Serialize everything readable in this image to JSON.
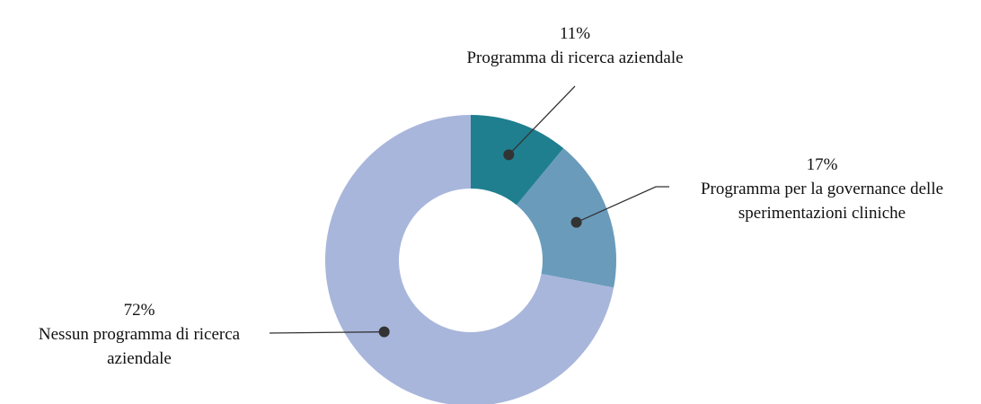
{
  "chart_data": {
    "type": "donut",
    "categories": [
      "Programma di ricerca aziendale",
      "Programma per la governance delle sperimentazioni cliniche",
      "Nessun programma di ricerca aziendale"
    ],
    "values": [
      11,
      17,
      72
    ],
    "value_labels": [
      "11%",
      "17%",
      "72%"
    ],
    "colors": [
      "#1f7f8f",
      "#6a9bbb",
      "#a8b6db"
    ]
  }
}
